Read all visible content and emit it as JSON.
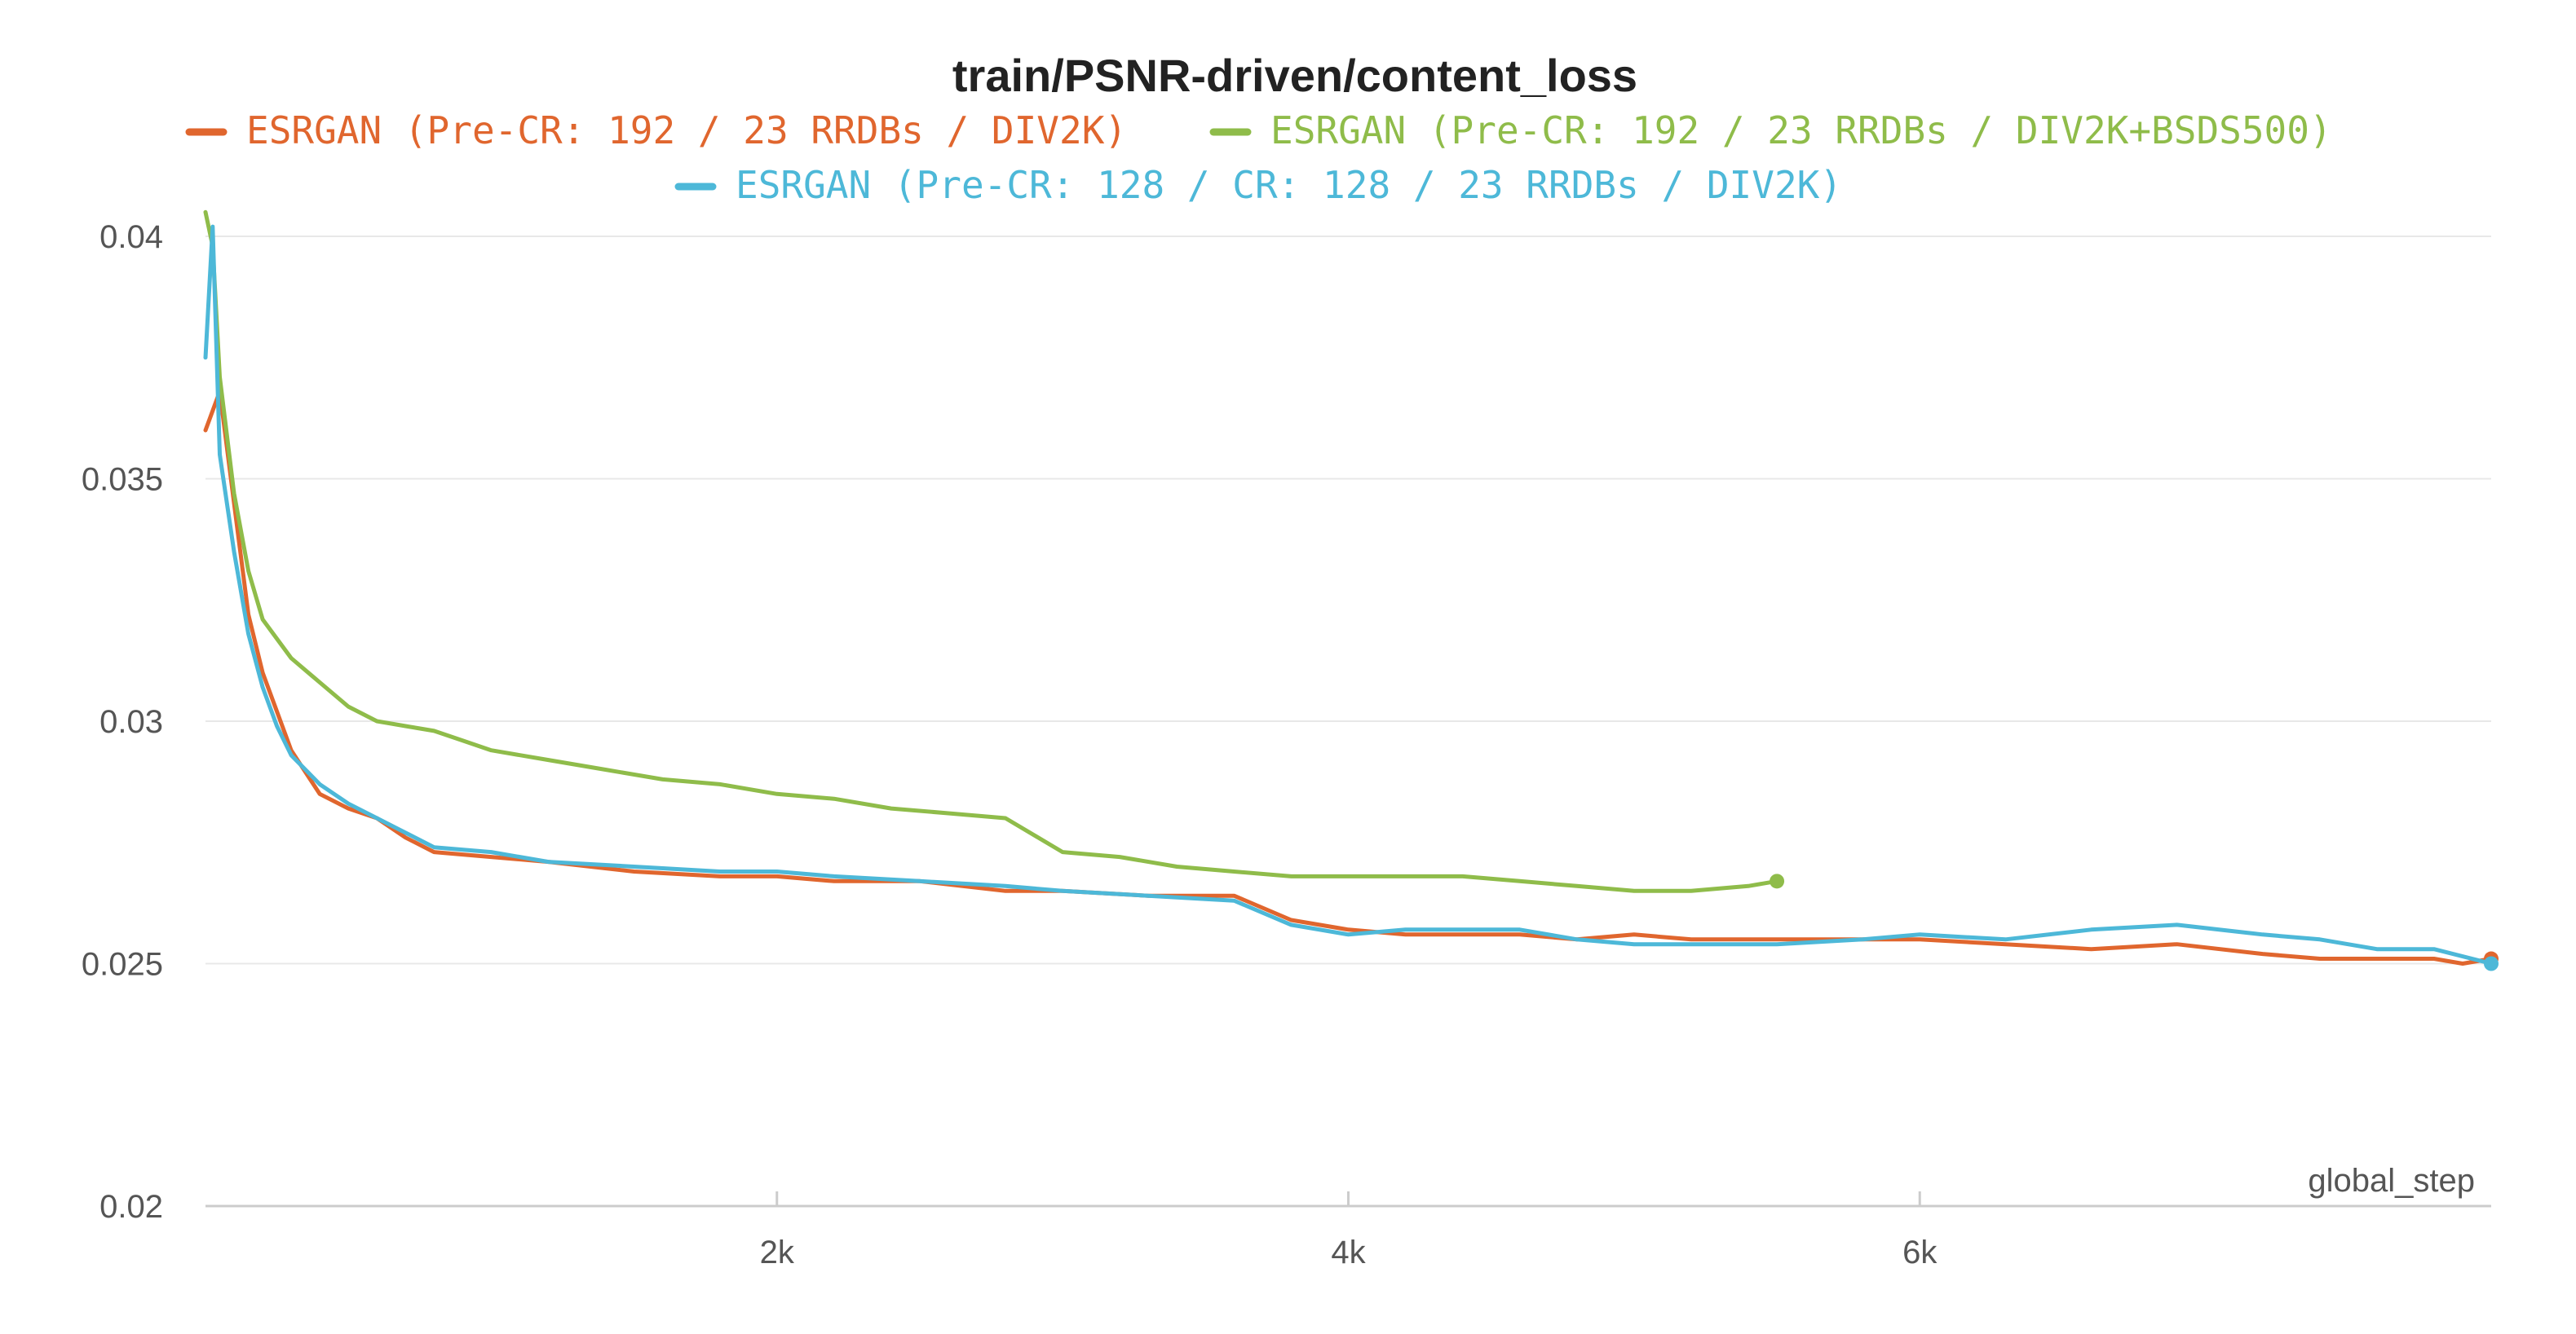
{
  "chart_data": {
    "type": "line",
    "title": "train/PSNR-driven/content_loss",
    "xlabel": "global_step",
    "ylabel": "",
    "xlim": [
      0,
      8000
    ],
    "ylim": [
      0.02,
      0.04
    ],
    "grid": true,
    "legend_position": "top-center",
    "x_ticks": [
      {
        "value": 2000,
        "label": "2k"
      },
      {
        "value": 4000,
        "label": "4k"
      },
      {
        "value": 6000,
        "label": "6k"
      }
    ],
    "y_ticks": [
      {
        "value": 0.02,
        "label": "0.02"
      },
      {
        "value": 0.025,
        "label": "0.025"
      },
      {
        "value": 0.03,
        "label": "0.03"
      },
      {
        "value": 0.035,
        "label": "0.035"
      },
      {
        "value": 0.04,
        "label": "0.04"
      }
    ],
    "series": [
      {
        "name": "ESRGAN (Pre-CR: 192 / 23 RRDBs / DIV2K)",
        "color": "#e0662e",
        "x": [
          0,
          50,
          100,
          150,
          200,
          250,
          300,
          400,
          500,
          600,
          700,
          800,
          1000,
          1200,
          1500,
          1800,
          2000,
          2200,
          2500,
          2800,
          3000,
          3300,
          3600,
          3800,
          4000,
          4200,
          4400,
          4600,
          4800,
          5000,
          5200,
          5500,
          5800,
          6000,
          6300,
          6600,
          6900,
          7200,
          7400,
          7600,
          7800,
          7900,
          8000
        ],
        "y": [
          0.036,
          0.0368,
          0.0345,
          0.0322,
          0.031,
          0.0302,
          0.0294,
          0.0285,
          0.0282,
          0.028,
          0.0276,
          0.0273,
          0.0272,
          0.0271,
          0.0269,
          0.0268,
          0.0268,
          0.0267,
          0.0267,
          0.0265,
          0.0265,
          0.0264,
          0.0264,
          0.0259,
          0.0257,
          0.0256,
          0.0256,
          0.0256,
          0.0255,
          0.0256,
          0.0255,
          0.0255,
          0.0255,
          0.0255,
          0.0254,
          0.0253,
          0.0254,
          0.0252,
          0.0251,
          0.0251,
          0.0251,
          0.025,
          0.0251
        ]
      },
      {
        "name": "ESRGAN (Pre-CR: 192 / 23 RRDBs / DIV2K+BSDS500)",
        "color": "#8fbc4a",
        "x": [
          0,
          25,
          50,
          100,
          150,
          200,
          250,
          300,
          400,
          500,
          600,
          700,
          800,
          900,
          1000,
          1200,
          1400,
          1600,
          1800,
          2000,
          2200,
          2400,
          2600,
          2800,
          3000,
          3200,
          3400,
          3600,
          3800,
          4000,
          4200,
          4400,
          4600,
          4800,
          5000,
          5200,
          5400,
          5500
        ],
        "y": [
          0.0405,
          0.0398,
          0.0371,
          0.0347,
          0.0331,
          0.0321,
          0.0317,
          0.0313,
          0.0308,
          0.0303,
          0.03,
          0.0299,
          0.0298,
          0.0296,
          0.0294,
          0.0292,
          0.029,
          0.0288,
          0.0287,
          0.0285,
          0.0284,
          0.0282,
          0.0281,
          0.028,
          0.0273,
          0.0272,
          0.027,
          0.0269,
          0.0268,
          0.0268,
          0.0268,
          0.0268,
          0.0267,
          0.0266,
          0.0265,
          0.0265,
          0.0266,
          0.0267
        ]
      },
      {
        "name": "ESRGAN (Pre-CR: 128 / CR: 128 / 23 RRDBs / DIV2K)",
        "color": "#4db8d8",
        "x": [
          0,
          25,
          50,
          100,
          150,
          200,
          250,
          300,
          400,
          500,
          600,
          700,
          800,
          1000,
          1200,
          1500,
          1800,
          2000,
          2200,
          2500,
          2800,
          3000,
          3300,
          3600,
          3800,
          4000,
          4200,
          4400,
          4600,
          4800,
          5000,
          5200,
          5500,
          5800,
          6000,
          6300,
          6600,
          6900,
          7200,
          7400,
          7600,
          7800,
          8000
        ],
        "y": [
          0.0375,
          0.0402,
          0.0355,
          0.0335,
          0.0318,
          0.0307,
          0.0299,
          0.0293,
          0.0287,
          0.0283,
          0.028,
          0.0277,
          0.0274,
          0.0273,
          0.0271,
          0.027,
          0.0269,
          0.0269,
          0.0268,
          0.0267,
          0.0266,
          0.0265,
          0.0264,
          0.0263,
          0.0258,
          0.0256,
          0.0257,
          0.0257,
          0.0257,
          0.0255,
          0.0254,
          0.0254,
          0.0254,
          0.0255,
          0.0256,
          0.0255,
          0.0257,
          0.0258,
          0.0256,
          0.0255,
          0.0253,
          0.0253,
          0.025
        ]
      }
    ]
  }
}
